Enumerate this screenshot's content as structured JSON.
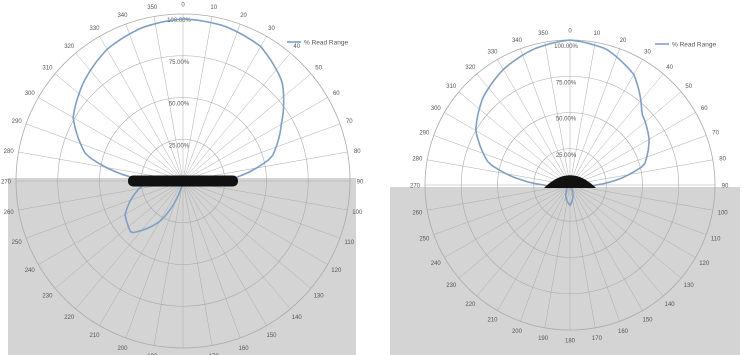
{
  "colors": {
    "curve": "#7f9ec4",
    "grid": "#aaaaaa",
    "shade": "#d4d4d4",
    "device": "#111111",
    "text": "#555555"
  },
  "chart_data": [
    {
      "type": "polar-line",
      "title": "",
      "legend": {
        "label": "% Read Range",
        "position": "top-right"
      },
      "angle_unit": "degrees",
      "angle_tick_step": 10,
      "radial_ticks": [
        "25.00%",
        "50.00%",
        "75.00%",
        "100.00%"
      ],
      "radial_max": 100,
      "shaded_region": "90-270 (rear hemisphere)",
      "series": [
        {
          "name": "% Read Range",
          "angles": [
            0,
            15,
            30,
            45,
            60,
            75,
            90,
            105,
            120,
            135,
            150,
            165,
            180,
            195,
            210,
            225,
            240,
            255,
            270,
            285,
            300,
            315,
            330,
            345,
            360
          ],
          "values": [
            97,
            96,
            93,
            84,
            68,
            55,
            24,
            9,
            5,
            3,
            2,
            1,
            1,
            4,
            28,
            44,
            40,
            30,
            20,
            60,
            76,
            84,
            91,
            95,
            97
          ]
        }
      ]
    },
    {
      "type": "polar-line",
      "title": "",
      "legend": {
        "label": "% Read Range",
        "position": "top-right"
      },
      "angle_unit": "degrees",
      "angle_tick_step": 10,
      "radial_ticks": [
        "25.00%",
        "50.00%",
        "75.00%",
        "100.00%"
      ],
      "radial_max": 100,
      "shaded_region": "90-270 (rear hemisphere)",
      "series": [
        {
          "name": "% Read Range",
          "angles": [
            0,
            15,
            30,
            45,
            60,
            75,
            90,
            105,
            120,
            135,
            150,
            165,
            180,
            195,
            210,
            225,
            240,
            255,
            270,
            285,
            300,
            315,
            330,
            345,
            360
          ],
          "values": [
            100,
            97,
            88,
            70,
            63,
            53,
            18,
            5,
            3,
            2,
            1,
            8,
            14,
            10,
            5,
            3,
            2,
            6,
            18,
            58,
            75,
            85,
            92,
            97,
            100
          ]
        }
      ]
    }
  ]
}
